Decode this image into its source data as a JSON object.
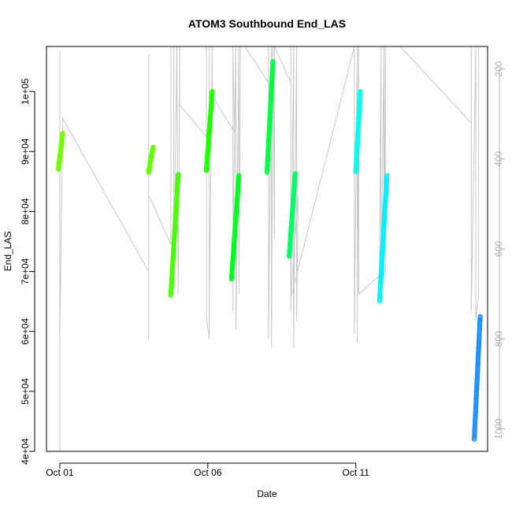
{
  "chart_data": {
    "type": "scatter",
    "title": "ATOM3 Southbound End_LAS",
    "xlabel": "Date",
    "ylabel": "End_LAS",
    "x_ticks": [
      {
        "value": 0,
        "label": "Oct 01"
      },
      {
        "value": 5,
        "label": "Oct 06"
      },
      {
        "value": 10,
        "label": "Oct 11"
      }
    ],
    "xlim": [
      -0.45,
      14.45
    ],
    "ylim": [
      40000,
      107500
    ],
    "y_ticks": [
      {
        "value": 40000,
        "label": "4e+04"
      },
      {
        "value": 50000,
        "label": "5e+04"
      },
      {
        "value": 60000,
        "label": "6e+04"
      },
      {
        "value": 70000,
        "label": "7e+04"
      },
      {
        "value": 80000,
        "label": "8e+04"
      },
      {
        "value": 90000,
        "label": "9e+04"
      },
      {
        "value": 100000,
        "label": "1e+05"
      }
    ],
    "y2lim": [
      1050,
      150
    ],
    "y2_ticks": [
      {
        "value": 200,
        "label": "200"
      },
      {
        "value": 400,
        "label": "400"
      },
      {
        "value": 600,
        "label": "600"
      },
      {
        "value": 800,
        "label": "800"
      },
      {
        "value": 1000,
        "label": "1000"
      }
    ],
    "grid": false,
    "series": [
      {
        "color": "#77ff00",
        "x_start": -0.05,
        "x_end": 0.1,
        "y_start": 87000,
        "y_end": 93000
      },
      {
        "color": "#66ff00",
        "x_start": 3.0,
        "x_end": 3.15,
        "y_start": 86500,
        "y_end": 90700
      },
      {
        "color": "#44ff00",
        "x_start": 3.75,
        "x_end": 4.0,
        "y_start": 66000,
        "y_end": 86200
      },
      {
        "color": "#22ff00",
        "x_start": 4.95,
        "x_end": 5.15,
        "y_start": 86800,
        "y_end": 100000
      },
      {
        "color": "#00ff22",
        "x_start": 5.8,
        "x_end": 6.05,
        "y_start": 68700,
        "y_end": 86000
      },
      {
        "color": "#00ff44",
        "x_start": 7.0,
        "x_end": 7.2,
        "y_start": 86500,
        "y_end": 105000
      },
      {
        "color": "#00ff66",
        "x_start": 7.75,
        "x_end": 7.95,
        "y_start": 72500,
        "y_end": 86300
      },
      {
        "color": "#00ffee",
        "x_start": 10.0,
        "x_end": 10.15,
        "y_start": 86600,
        "y_end": 100000
      },
      {
        "color": "#00f0ff",
        "x_start": 10.8,
        "x_end": 11.05,
        "y_start": 65000,
        "y_end": 86000
      },
      {
        "color": "#1a8fff",
        "x_start": 14.0,
        "x_end": 14.2,
        "y_start": 42000,
        "y_end": 62500
      }
    ],
    "secondary_series": {
      "color": "#c8c8c8",
      "path": [
        [
          0.0,
          170
        ],
        [
          0.0,
          1050
        ],
        [
          0.0,
          160
        ],
        [
          0.0,
          735
        ],
        [
          0.0,
          800
        ],
        [
          0.1,
          310
        ],
        [
          3.0,
          650
        ],
        [
          3.0,
          170
        ],
        [
          3.0,
          800
        ],
        [
          3.0,
          480
        ],
        [
          3.75,
          590
        ],
        [
          3.75,
          150
        ],
        [
          3.85,
          150
        ],
        [
          3.85,
          690
        ],
        [
          3.95,
          150
        ],
        [
          4.0,
          700
        ],
        [
          4.05,
          150
        ],
        [
          4.05,
          280
        ],
        [
          4.95,
          350
        ],
        [
          4.95,
          150
        ],
        [
          4.95,
          750
        ],
        [
          5.05,
          800
        ],
        [
          5.05,
          150
        ],
        [
          5.05,
          780
        ],
        [
          5.05,
          740
        ],
        [
          5.15,
          150
        ],
        [
          5.15,
          260
        ],
        [
          5.9,
          340
        ],
        [
          5.85,
          150
        ],
        [
          5.85,
          740
        ],
        [
          5.85,
          590
        ],
        [
          5.95,
          150
        ],
        [
          5.95,
          780
        ],
        [
          6.05,
          150
        ],
        [
          6.05,
          700
        ],
        [
          6.1,
          150
        ],
        [
          6.25,
          150
        ],
        [
          7.05,
          230
        ],
        [
          7.05,
          150
        ],
        [
          7.05,
          800
        ],
        [
          7.15,
          150
        ],
        [
          7.15,
          820
        ],
        [
          7.2,
          150
        ],
        [
          7.25,
          580
        ],
        [
          7.25,
          150
        ],
        [
          7.8,
          230
        ],
        [
          7.8,
          150
        ],
        [
          7.8,
          740
        ],
        [
          7.9,
          150
        ],
        [
          7.9,
          820
        ],
        [
          8.0,
          150
        ],
        [
          8.0,
          760
        ],
        [
          8.05,
          480
        ],
        [
          7.8,
          710
        ],
        [
          9.95,
          150
        ],
        [
          9.95,
          790
        ],
        [
          10.05,
          150
        ],
        [
          10.05,
          810
        ],
        [
          10.1,
          150
        ],
        [
          10.1,
          700
        ],
        [
          10.8,
          660
        ],
        [
          10.85,
          150
        ],
        [
          10.85,
          700
        ],
        [
          10.95,
          150
        ],
        [
          10.95,
          680
        ],
        [
          11.0,
          150
        ],
        [
          11.0,
          660
        ],
        [
          11.0,
          150
        ],
        [
          11.5,
          150
        ],
        [
          13.9,
          320
        ],
        [
          13.9,
          150
        ],
        [
          13.9,
          740
        ],
        [
          14.05,
          150
        ],
        [
          14.05,
          760
        ],
        [
          14.15,
          700
        ],
        [
          14.15,
          150
        ],
        [
          14.15,
          610
        ]
      ]
    }
  }
}
